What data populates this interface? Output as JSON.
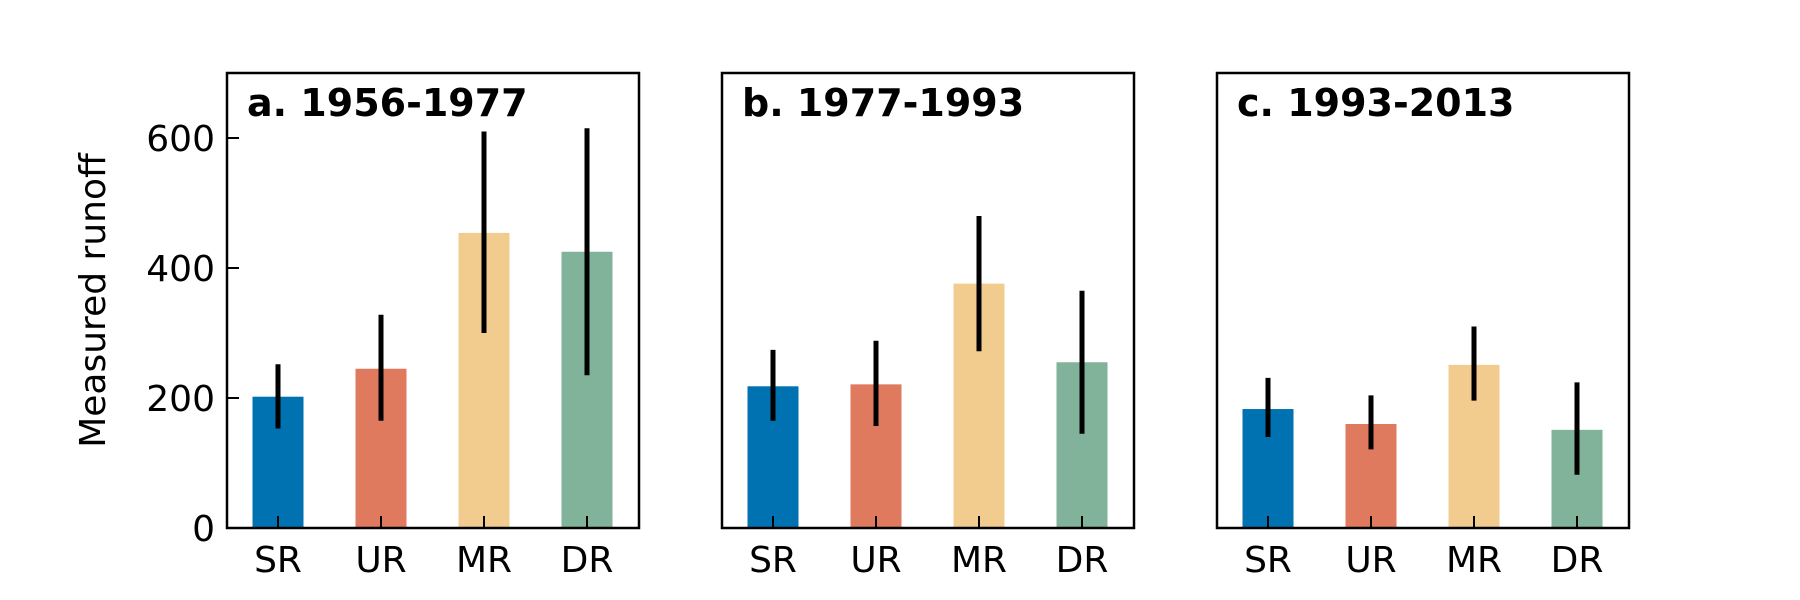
{
  "chart_data": {
    "type": "bar",
    "ylabel": "Measured runoff",
    "ylim": [
      0,
      700
    ],
    "yticks": [
      0,
      200,
      400,
      600
    ],
    "grid": false,
    "categories": [
      "SR",
      "UR",
      "MR",
      "DR"
    ],
    "colors": [
      "#0072b2",
      "#e07a5f",
      "#f2cc8f",
      "#81b29a"
    ],
    "error_bar_color": "#000000",
    "panels": [
      {
        "title": "a. 1956-1977",
        "values": [
          202,
          245,
          454,
          425
        ],
        "error_low": [
          153,
          165,
          300,
          235
        ],
        "error_high": [
          252,
          328,
          610,
          615
        ]
      },
      {
        "title": "b. 1977-1993",
        "values": [
          218,
          221,
          376,
          255
        ],
        "error_low": [
          165,
          157,
          272,
          145
        ],
        "error_high": [
          274,
          288,
          480,
          365
        ]
      },
      {
        "title": "c. 1993-2013",
        "values": [
          183,
          160,
          251,
          151
        ],
        "error_low": [
          140,
          121,
          196,
          82
        ],
        "error_high": [
          231,
          204,
          310,
          224
        ]
      }
    ]
  }
}
